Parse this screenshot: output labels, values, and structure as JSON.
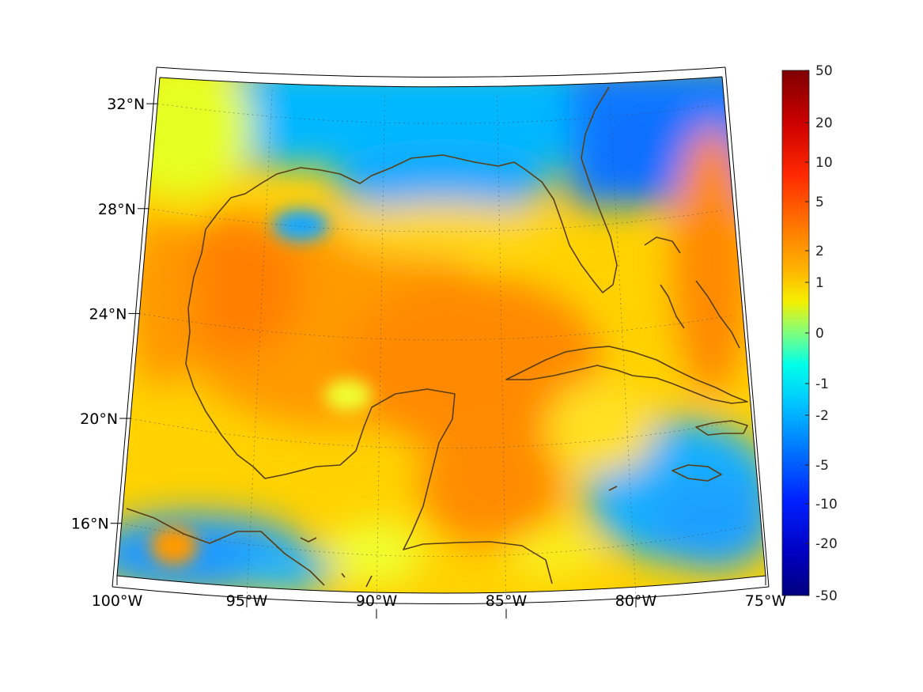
{
  "map": {
    "projection": "lambert-conformal",
    "lat_range": [
      14,
      33
    ],
    "lon_range": [
      -100,
      -75
    ],
    "grid": true,
    "lat_labels": [
      "32°N",
      "28°N",
      "24°N",
      "20°N",
      "16°N"
    ],
    "lat_values": [
      32,
      28,
      24,
      20,
      16
    ],
    "lon_labels": [
      "100°W",
      "95°W",
      "90°W",
      "85°W",
      "80°W",
      "75°W"
    ],
    "lon_values": [
      -100,
      -95,
      -90,
      -85,
      -80,
      -75
    ],
    "coastline_color": "#5a3e14",
    "field_description_colors": {
      "positive_high": "#ff6a00",
      "positive_mid": "#ffb000",
      "near_zero": "#e8ff20",
      "negative_mid": "#00c8ff",
      "negative_high": "#0064ff"
    }
  },
  "colorbar": {
    "colormap": "jet",
    "labels": [
      "50",
      "20",
      "10",
      "5",
      "2",
      "1",
      "0",
      "-1",
      "-2",
      "-5",
      "-10",
      "-20",
      "-50"
    ],
    "colors": [
      "#7f0000",
      "#ff0000",
      "#ff5a00",
      "#ffa000",
      "#ffe000",
      "#c8ff36",
      "#7fff7f",
      "#36ffc8",
      "#00d8ff",
      "#0090ff",
      "#0030ff",
      "#0000d8",
      "#00007f"
    ]
  }
}
